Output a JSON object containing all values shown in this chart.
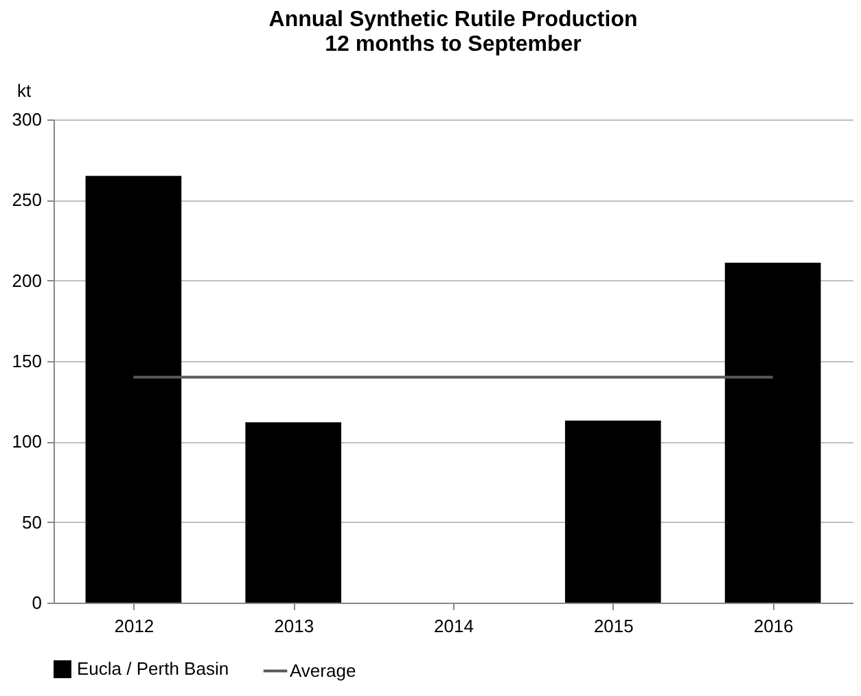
{
  "chart_data": {
    "type": "bar",
    "title": "Annual Synthetic Rutile Production\n12 months to September",
    "ylabel": "kt",
    "categories": [
      "2012",
      "2013",
      "2014",
      "2015",
      "2016"
    ],
    "series": [
      {
        "name": "Eucla / Perth Basin",
        "color": "#000000",
        "values": [
          265,
          112,
          0,
          113,
          211
        ]
      },
      {
        "name": "Average",
        "type": "line",
        "color": "#595959",
        "values": [
          140,
          140,
          140,
          140,
          140
        ]
      }
    ],
    "ylim": [
      0,
      300
    ],
    "yticks": [
      0,
      50,
      100,
      150,
      200,
      250,
      300
    ],
    "grid": "y",
    "legend": "bottom"
  }
}
